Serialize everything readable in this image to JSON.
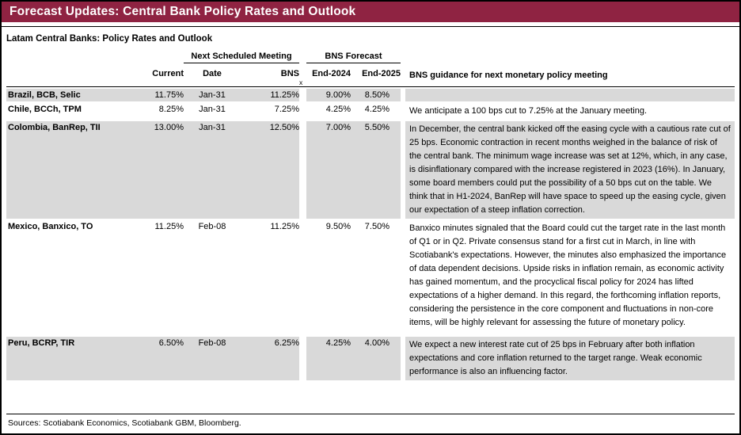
{
  "banner": {
    "title": "Forecast Updates: Central Bank Policy Rates and Outlook"
  },
  "section_title": "Latam Central Banks: Policy Rates and Outlook",
  "table": {
    "group_headers": {
      "meeting": "Next Scheduled Meeting",
      "forecast": "BNS Forecast"
    },
    "columns": {
      "current": "Current",
      "date": "Date",
      "bns": "BNS",
      "end_2024": "End-2024",
      "end_2025": "End-2025",
      "guidance": "BNS guidance for next monetary policy meeting"
    },
    "footnote_marker": "x",
    "rows": [
      {
        "bank": "Brazil, BCB, Selic",
        "current": "11.75%",
        "date": "Jan-31",
        "bns": "11.25%",
        "end_2024": "9.00%",
        "end_2025": "8.50%",
        "guidance": ""
      },
      {
        "bank": "Chile, BCCh, TPM",
        "current": "8.25%",
        "date": "Jan-31",
        "bns": "7.25%",
        "end_2024": "4.25%",
        "end_2025": "4.25%",
        "guidance": "We anticipate a 100 bps cut to 7.25% at the January meeting."
      },
      {
        "bank": "Colombia, BanRep, TII",
        "current": "13.00%",
        "date": "Jan-31",
        "bns": "12.50%",
        "end_2024": "7.00%",
        "end_2025": "5.50%",
        "guidance": "In December, the central bank kicked off the easing cycle with a cautious rate cut of 25 bps. Economic contraction in recent months weighed in the balance of risk of the central bank. The minimum wage increase was set at 12%, which, in any case, is disinflationary compared with the increase registered in 2023 (16%). In January, some board members could put the possibility of a 50 bps cut on the table. We think that in H1-2024, BanRep will have space to speed up the easing cycle, given our expectation of a steep inflation correction."
      },
      {
        "bank": "Mexico, Banxico, TO",
        "current": "11.25%",
        "date": "Feb-08",
        "bns": "11.25%",
        "end_2024": "9.50%",
        "end_2025": "7.50%",
        "guidance": "Banxico minutes signaled that the Board could cut the target rate in the last month of Q1 or in Q2. Private consensus stand for a first cut in March, in line with Scotiabank's expectations. However, the minutes also emphasized the importance of data dependent decisions. Upside risks in inflation remain, as economic activity has gained momentum, and the procyclical fiscal policy for 2024 has lifted expectations of a higher demand. In this regard, the forthcoming inflation reports, considering the persistence in the core component and fluctuations in non-core items, will be highly relevant for assessing the future of monetary policy."
      },
      {
        "bank": "Peru, BCRP, TIR",
        "current": "6.50%",
        "date": "Feb-08",
        "bns": "6.25%",
        "end_2024": "4.25%",
        "end_2025": "4.00%",
        "guidance": "We expect a new interest rate cut of 25 bps in February after both inflation expectations and core inflation returned to the target range. Weak economic performance is also an influencing factor."
      }
    ]
  },
  "footer": {
    "sources": "Sources: Scotiabank Economics, Scotiabank GBM, Bloomberg."
  },
  "colors": {
    "banner_bg": "#8F2342",
    "row_shade": "#D9D9D9"
  }
}
